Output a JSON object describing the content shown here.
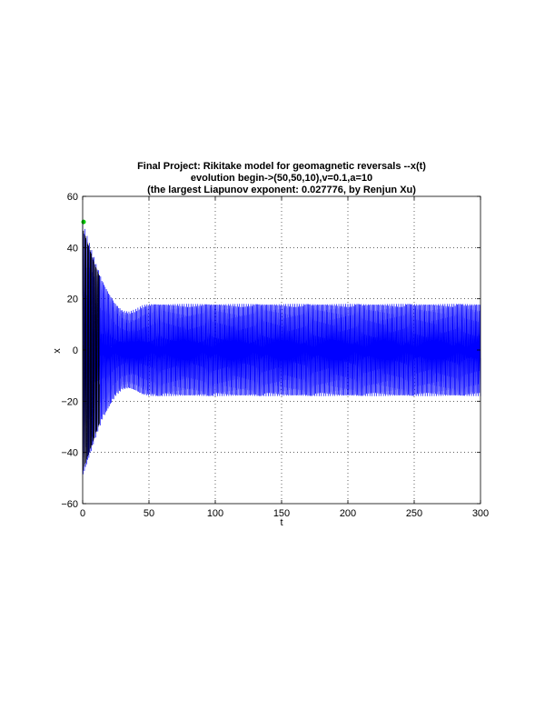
{
  "chart_data": {
    "type": "line",
    "title": [
      "Final Project: Rikitake model for geomagnetic reversals --x(t)",
      "evolution begin->(50,50,10),v=0.1,a=10",
      "(the largest Liapunov exponent: 0.027776, by Renjun Xu)"
    ],
    "xlabel": "t",
    "ylabel": "x",
    "xlim": [
      0,
      300
    ],
    "ylim": [
      -60,
      60
    ],
    "xticks": [
      0,
      50,
      100,
      150,
      200,
      250,
      300
    ],
    "yticks": [
      60,
      40,
      20,
      0,
      -20,
      -40,
      -60
    ],
    "xtick_labels": [
      "0",
      "50",
      "100",
      "150",
      "200",
      "250",
      "300"
    ],
    "ytick_labels": [
      "60",
      "40",
      "20",
      "0",
      "−20",
      "−40",
      "−60"
    ],
    "grid": true,
    "grid_style": "dotted",
    "series": [
      {
        "color": "#0000ff",
        "description_of_signal": "fast oscillation of x(t)",
        "envelope": [
          {
            "t": 0,
            "amp": 50
          },
          {
            "t": 5,
            "amp": 42
          },
          {
            "t": 10,
            "amp": 34
          },
          {
            "t": 15,
            "amp": 27
          },
          {
            "t": 20,
            "amp": 22
          },
          {
            "t": 25,
            "amp": 18
          },
          {
            "t": 30,
            "amp": 15.5
          },
          {
            "t": 35,
            "amp": 15
          },
          {
            "t": 40,
            "amp": 16
          },
          {
            "t": 45,
            "amp": 17.5
          },
          {
            "t": 50,
            "amp": 18
          },
          {
            "t": 300,
            "amp": 18
          }
        ]
      }
    ],
    "start_marker": {
      "t": 0,
      "x": 50,
      "color": "#00cc00"
    },
    "overlay_color": "#000000"
  }
}
